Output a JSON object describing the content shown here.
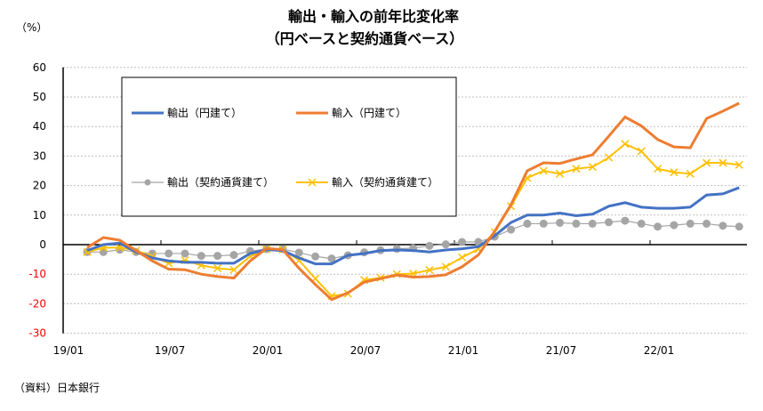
{
  "chart_data": {
    "type": "line",
    "title": "輸出・輸入の前年比変化率",
    "subtitle": "（円ベースと契約通貨ベース）",
    "ylabel": "（%）",
    "source": "（資料）日本銀行",
    "ylim": [
      -30,
      60
    ],
    "yticks": [
      60,
      50,
      40,
      30,
      20,
      10,
      0,
      -10,
      -20,
      -30
    ],
    "xtick_labels": [
      "19/01",
      "19/07",
      "20/01",
      "20/07",
      "21/01",
      "21/07",
      "22/01"
    ],
    "grid": true,
    "legend_placement": "top-left",
    "negative_tick_color": "#ff0000",
    "series": [
      {
        "name": "輸出（円建て）",
        "color": "#4472c4",
        "marker": "none",
        "values": [
          -2,
          0,
          0.5,
          -2.5,
          -4.5,
          -5.5,
          -6,
          -6,
          -6.3,
          -6.3,
          -3,
          -1.7,
          -2,
          -4.5,
          -6.5,
          -6.5,
          -3.6,
          -3,
          -2,
          -1.8,
          -2,
          -2.5,
          -1.8,
          -1.4,
          -0.7,
          3,
          7.5,
          10,
          10,
          10.7,
          9.8,
          10.3,
          13,
          14.2,
          12.7,
          12.3,
          12.3,
          12.7,
          16.8,
          17.2,
          19.3
        ]
      },
      {
        "name": "輸入（円建て）",
        "color": "#ed7d31",
        "marker": "none",
        "values": [
          -1,
          2.4,
          1.5,
          -2,
          -5.5,
          -8.3,
          -8.5,
          -10,
          -10.8,
          -11.3,
          -5.5,
          -1.3,
          -1.7,
          -8,
          -13.5,
          -18.6,
          -16.3,
          -12.7,
          -11.5,
          -10.3,
          -11,
          -10.8,
          -10.2,
          -7.5,
          -3.5,
          4.5,
          13.5,
          25,
          27.7,
          27.5,
          29,
          30.4,
          36.7,
          43.2,
          40.2,
          35.6,
          33.1,
          32.8,
          42.7,
          45.2,
          47.9
        ]
      },
      {
        "name": "輸出（契約通貨建て）",
        "color": "#a5a5a5",
        "marker": "circle",
        "values": [
          -2.5,
          -2.5,
          -1.7,
          -2.5,
          -3,
          -3,
          -3,
          -3.8,
          -3.8,
          -3.5,
          -2.2,
          -1.5,
          -1.5,
          -2.7,
          -4,
          -4.7,
          -3.6,
          -2.6,
          -1.9,
          -1.4,
          -1.2,
          -0.4,
          0.1,
          0.9,
          0.9,
          2.7,
          5.1,
          7.1,
          7.1,
          7.4,
          7.1,
          7.1,
          7.6,
          8.1,
          7.1,
          6.1,
          6.6,
          7.1,
          7.1,
          6.4,
          6.1
        ]
      },
      {
        "name": "輸入（契約通貨建て）",
        "color": "#ffc000",
        "marker": "x",
        "values": [
          -2.5,
          -1,
          -1,
          -2,
          -4,
          -6.3,
          -5.3,
          -7,
          -8,
          -8.5,
          -4,
          -1.5,
          -1.7,
          -5.3,
          -11.5,
          -17.4,
          -16.6,
          -12,
          -11.2,
          -10,
          -9.8,
          -8.6,
          -7.5,
          -4.3,
          -1.5,
          4.3,
          13,
          22.6,
          25,
          24,
          25.7,
          26.3,
          29.5,
          34.1,
          31.6,
          25.7,
          24.5,
          24,
          27.7,
          27.7,
          27
        ]
      }
    ]
  }
}
